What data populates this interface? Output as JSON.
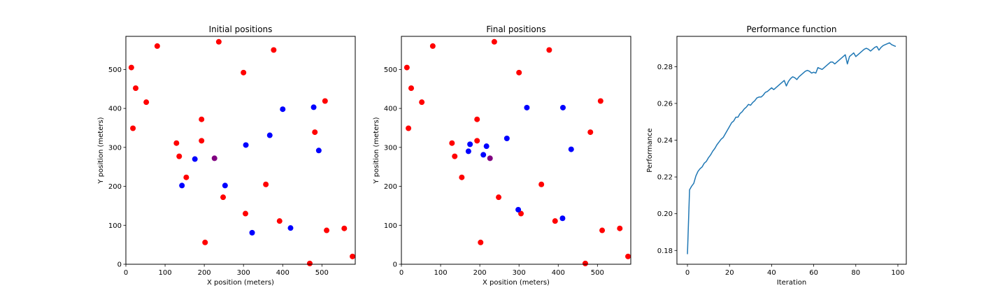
{
  "chart_data": [
    {
      "type": "scatter",
      "title": "Initial positions",
      "xlabel": "X position (meters)",
      "ylabel": "Y position (meters)",
      "xlim": [
        0,
        585
      ],
      "ylim": [
        0,
        585
      ],
      "xticks": [
        0,
        100,
        200,
        300,
        400,
        500
      ],
      "yticks": [
        0,
        100,
        200,
        300,
        400,
        500
      ],
      "xtick_labels": [
        "0",
        "100",
        "200",
        "300",
        "400",
        "500"
      ],
      "ytick_labels": [
        "0",
        "100",
        "200",
        "300",
        "400",
        "500"
      ],
      "grid": false,
      "series": [
        {
          "color": "#ff0000",
          "points": [
            [
              14,
              505
            ],
            [
              25,
              452
            ],
            [
              18,
              349
            ],
            [
              52,
              416
            ],
            [
              80,
              560
            ],
            [
              237,
              571
            ],
            [
              300,
              492
            ],
            [
              377,
              550
            ],
            [
              193,
              372
            ],
            [
              193,
              317
            ],
            [
              129,
              311
            ],
            [
              136,
              277
            ],
            [
              154,
              223
            ],
            [
              248,
              172
            ],
            [
              305,
              130
            ],
            [
              357,
              205
            ],
            [
              392,
              111
            ],
            [
              202,
              56
            ],
            [
              508,
              419
            ],
            [
              482,
              339
            ],
            [
              512,
              87
            ],
            [
              557,
              92
            ],
            [
              469,
              2
            ],
            [
              578,
              20
            ]
          ]
        },
        {
          "color": "#0000ff",
          "points": [
            [
              176,
              270
            ],
            [
              143,
              202
            ],
            [
              253,
              202
            ],
            [
              306,
              306
            ],
            [
              367,
              331
            ],
            [
              400,
              398
            ],
            [
              479,
              403
            ],
            [
              492,
              292
            ],
            [
              322,
              81
            ],
            [
              420,
              93
            ]
          ]
        },
        {
          "color": "#800080",
          "points": [
            [
              226,
              272
            ]
          ]
        }
      ]
    },
    {
      "type": "scatter",
      "title": "Final positions",
      "xlabel": "X position (meters)",
      "ylabel": "Y position (meters)",
      "xlim": [
        0,
        585
      ],
      "ylim": [
        0,
        585
      ],
      "xticks": [
        0,
        100,
        200,
        300,
        400,
        500
      ],
      "yticks": [
        0,
        100,
        200,
        300,
        400,
        500
      ],
      "xtick_labels": [
        "0",
        "100",
        "200",
        "300",
        "400",
        "500"
      ],
      "ytick_labels": [
        "0",
        "100",
        "200",
        "300",
        "400",
        "500"
      ],
      "grid": false,
      "series": [
        {
          "color": "#ff0000",
          "points": [
            [
              14,
              505
            ],
            [
              25,
              452
            ],
            [
              18,
              349
            ],
            [
              52,
              416
            ],
            [
              80,
              560
            ],
            [
              237,
              571
            ],
            [
              300,
              492
            ],
            [
              377,
              550
            ],
            [
              193,
              372
            ],
            [
              193,
              317
            ],
            [
              129,
              311
            ],
            [
              136,
              277
            ],
            [
              154,
              223
            ],
            [
              248,
              172
            ],
            [
              305,
              130
            ],
            [
              357,
              205
            ],
            [
              392,
              111
            ],
            [
              202,
              56
            ],
            [
              508,
              419
            ],
            [
              482,
              339
            ],
            [
              512,
              87
            ],
            [
              557,
              92
            ],
            [
              469,
              2
            ],
            [
              578,
              20
            ]
          ]
        },
        {
          "color": "#0000ff",
          "points": [
            [
              320,
              402
            ],
            [
              412,
              402
            ],
            [
              269,
              323
            ],
            [
              433,
              295
            ],
            [
              175,
              308
            ],
            [
              217,
              303
            ],
            [
              171,
              290
            ],
            [
              209,
              281
            ],
            [
              298,
              140
            ],
            [
              411,
              118
            ]
          ]
        },
        {
          "color": "#800080",
          "points": [
            [
              226,
              272
            ]
          ]
        }
      ]
    },
    {
      "type": "line",
      "title": "Performance function",
      "xlabel": "Iteration",
      "ylabel": "Performance",
      "xlim": [
        -5,
        104
      ],
      "ylim": [
        0.1725,
        0.2965
      ],
      "xticks": [
        0,
        20,
        40,
        60,
        80,
        100
      ],
      "yticks": [
        0.18,
        0.2,
        0.22,
        0.24,
        0.26,
        0.28
      ],
      "xtick_labels": [
        "0",
        "20",
        "40",
        "60",
        "80",
        "100"
      ],
      "ytick_labels": [
        "0.18",
        "0.20",
        "0.22",
        "0.24",
        "0.26",
        "0.28"
      ],
      "grid": false,
      "series": [
        {
          "color": "#1f77b4",
          "x": [
            0,
            1,
            2,
            3,
            4,
            5,
            6,
            7,
            8,
            9,
            10,
            11,
            12,
            13,
            14,
            15,
            16,
            17,
            18,
            19,
            20,
            21,
            22,
            23,
            24,
            25,
            26,
            27,
            28,
            29,
            30,
            31,
            32,
            33,
            34,
            35,
            36,
            37,
            38,
            39,
            40,
            41,
            42,
            43,
            44,
            45,
            46,
            47,
            48,
            49,
            50,
            51,
            52,
            53,
            54,
            55,
            56,
            57,
            58,
            59,
            60,
            61,
            62,
            63,
            64,
            65,
            66,
            67,
            68,
            69,
            70,
            71,
            72,
            73,
            74,
            75,
            76,
            77,
            78,
            79,
            80,
            81,
            82,
            83,
            84,
            85,
            86,
            87,
            88,
            89,
            90,
            91,
            92,
            93,
            94,
            95,
            96,
            97,
            98,
            99
          ],
          "y": [
            0.178,
            0.213,
            0.215,
            0.2165,
            0.2205,
            0.223,
            0.2245,
            0.2255,
            0.2275,
            0.2285,
            0.2305,
            0.232,
            0.234,
            0.2355,
            0.2375,
            0.239,
            0.2405,
            0.2415,
            0.2435,
            0.2455,
            0.2475,
            0.2495,
            0.2505,
            0.2525,
            0.2525,
            0.2545,
            0.2555,
            0.257,
            0.258,
            0.2595,
            0.259,
            0.2605,
            0.2615,
            0.263,
            0.2635,
            0.2635,
            0.2645,
            0.266,
            0.2665,
            0.2675,
            0.2685,
            0.2675,
            0.2685,
            0.2695,
            0.2705,
            0.2715,
            0.2725,
            0.2695,
            0.272,
            0.2735,
            0.2745,
            0.274,
            0.273,
            0.2745,
            0.2755,
            0.2765,
            0.2775,
            0.278,
            0.2775,
            0.2765,
            0.277,
            0.2765,
            0.2795,
            0.279,
            0.2785,
            0.2795,
            0.2805,
            0.2815,
            0.2825,
            0.2825,
            0.2815,
            0.2825,
            0.2835,
            0.2845,
            0.2855,
            0.2865,
            0.2815,
            0.2855,
            0.2865,
            0.2875,
            0.2855,
            0.2865,
            0.2875,
            0.2885,
            0.2895,
            0.29,
            0.2895,
            0.2885,
            0.2895,
            0.2905,
            0.291,
            0.289,
            0.2905,
            0.2915,
            0.292,
            0.2925,
            0.293,
            0.292,
            0.2915,
            0.291
          ]
        }
      ]
    }
  ]
}
